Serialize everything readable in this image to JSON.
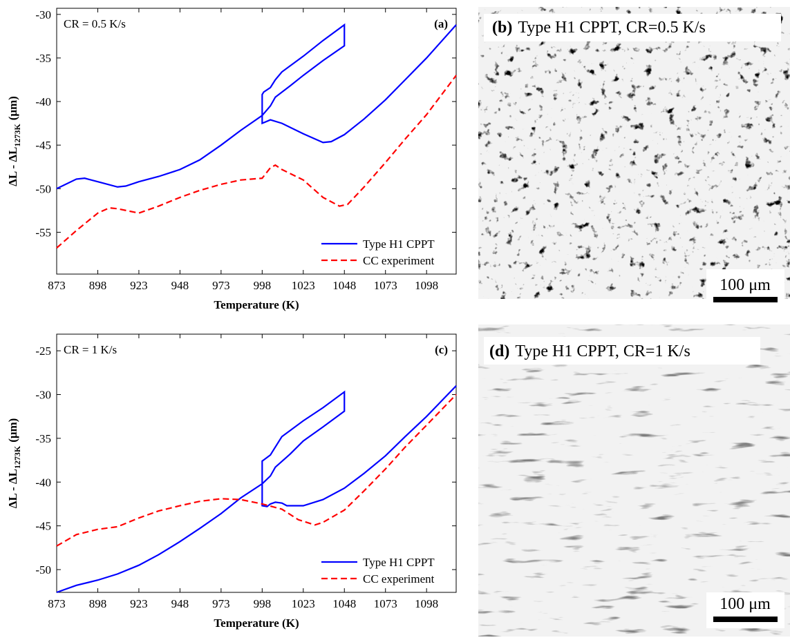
{
  "chart_data": [
    {
      "type": "line",
      "label": "(a)",
      "annotation": "CR = 0.5 K/s",
      "x_label": "Temperature (K)",
      "y_label": {
        "main": "ΔL - ΔL",
        "sub": "1273K",
        "unit": "(μm)"
      },
      "xlim": [
        873,
        1116
      ],
      "xticks": [
        873,
        898,
        923,
        948,
        973,
        998,
        1023,
        1048,
        1073,
        1098
      ],
      "ylim": [
        -59.8,
        -29.3
      ],
      "yticks": [
        -55,
        -50,
        -45,
        -40,
        -35,
        -30
      ],
      "legend": "lower right",
      "series": [
        {
          "name": "Type H1 CPPT",
          "color": "#0000ff",
          "style": "solid",
          "x": [
            873,
            885,
            890,
            900,
            910,
            915,
            923,
            935,
            948,
            960,
            973,
            985,
            998,
            1003,
            1006,
            1015,
            1023,
            1035,
            1048,
            1048,
            1035,
            1023,
            1010,
            1006,
            1003,
            999,
            998,
            998,
            1003,
            1010,
            1023,
            1035,
            1040,
            1048,
            1060,
            1073,
            1085,
            1098,
            1116
          ],
          "values": [
            -50,
            -48.9,
            -48.8,
            -49.3,
            -49.8,
            -49.7,
            -49.2,
            -48.6,
            -47.8,
            -46.7,
            -45,
            -43.3,
            -41.6,
            -40.5,
            -39.5,
            -38.2,
            -37,
            -35.3,
            -33.6,
            -31.2,
            -33,
            -34.8,
            -36.6,
            -37.5,
            -38.4,
            -38.9,
            -39.2,
            -42.5,
            -42.1,
            -42.5,
            -43.7,
            -44.7,
            -44.6,
            -43.8,
            -42,
            -39.8,
            -37.5,
            -35,
            -31.2
          ]
        },
        {
          "name": "CC experiment",
          "color": "#ff0000",
          "style": "dashed",
          "x": [
            873,
            885,
            898,
            905,
            910,
            923,
            935,
            948,
            960,
            973,
            985,
            998,
            1003,
            1006,
            1010,
            1023,
            1035,
            1045,
            1050,
            1060,
            1073,
            1085,
            1098,
            1116
          ],
          "values": [
            -56.8,
            -54.8,
            -52.8,
            -52.2,
            -52.3,
            -52.8,
            -52,
            -51,
            -50.2,
            -49.5,
            -49,
            -48.8,
            -47.6,
            -47.3,
            -47.8,
            -49,
            -51,
            -52,
            -51.8,
            -49.8,
            -47,
            -44.3,
            -41.5,
            -37
          ]
        }
      ]
    },
    {
      "type": "line",
      "label": "(c)",
      "annotation": "CR = 1 K/s",
      "x_label": "Temperature (K)",
      "y_label": {
        "main": "ΔL - ΔL",
        "sub": "1273K",
        "unit": "(μm)"
      },
      "xlim": [
        873,
        1116
      ],
      "xticks": [
        873,
        898,
        923,
        948,
        973,
        998,
        1023,
        1048,
        1073,
        1098
      ],
      "ylim": [
        -52.6,
        -23.1
      ],
      "yticks": [
        -50,
        -45,
        -40,
        -35,
        -30,
        -25
      ],
      "legend": "lower right",
      "series": [
        {
          "name": "Type H1 CPPT",
          "color": "#0000ff",
          "style": "solid",
          "x": [
            873,
            885,
            898,
            910,
            923,
            935,
            948,
            960,
            973,
            985,
            998,
            1003,
            1006,
            1015,
            1023,
            1035,
            1048,
            1048,
            1035,
            1023,
            1010,
            1005,
            1003,
            998,
            998,
            1001,
            1003,
            1006,
            1010,
            1013,
            1023,
            1035,
            1048,
            1060,
            1073,
            1085,
            1098,
            1116
          ],
          "values": [
            -52.6,
            -51.8,
            -51.2,
            -50.5,
            -49.5,
            -48.3,
            -46.8,
            -45.3,
            -43.6,
            -41.8,
            -40.2,
            -39.3,
            -38.3,
            -36.8,
            -35.3,
            -33.7,
            -31.9,
            -29.7,
            -31.5,
            -33,
            -34.8,
            -36.3,
            -36.9,
            -37.6,
            -42.7,
            -42.8,
            -42.5,
            -42.3,
            -42.4,
            -42.7,
            -42.7,
            -42,
            -40.7,
            -39,
            -37,
            -34.8,
            -32.5,
            -29
          ]
        },
        {
          "name": "CC experiment",
          "color": "#ff0000",
          "style": "dashed",
          "x": [
            873,
            885,
            898,
            910,
            923,
            935,
            948,
            960,
            973,
            985,
            998,
            1010,
            1020,
            1030,
            1035,
            1048,
            1060,
            1073,
            1085,
            1098,
            1116
          ],
          "values": [
            -47.3,
            -46,
            -45.4,
            -45.1,
            -44.1,
            -43.3,
            -42.7,
            -42.2,
            -41.9,
            -42,
            -42.5,
            -43.1,
            -44.3,
            -44.9,
            -44.6,
            -43.2,
            -41,
            -38.5,
            -36,
            -33.5,
            -30
          ]
        }
      ]
    }
  ],
  "micrographs": [
    {
      "label": "(b)",
      "caption": "Type H1 CPPT, CR=0.5 K/s",
      "scale_bar": "100 μm"
    },
    {
      "label": "(d)",
      "caption": "Type H1 CPPT, CR=1 K/s",
      "scale_bar": "100 μm"
    }
  ]
}
